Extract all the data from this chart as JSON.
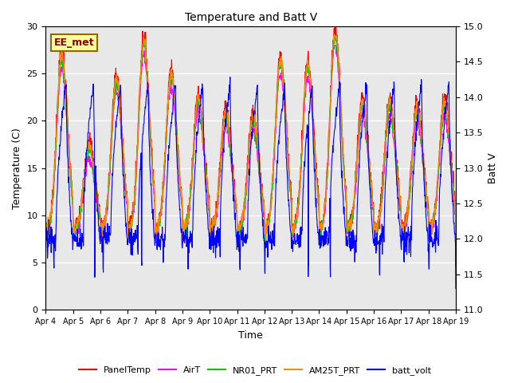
{
  "title": "Temperature and Batt V",
  "xlabel": "Time",
  "ylabel_left": "Temperature (C)",
  "ylabel_right": "Batt V",
  "ylim_left": [
    0,
    30
  ],
  "ylim_right": [
    11.0,
    15.0
  ],
  "yticks_left": [
    0,
    5,
    10,
    15,
    20,
    25,
    30
  ],
  "yticks_right": [
    11.0,
    11.5,
    12.0,
    12.5,
    13.0,
    13.5,
    14.0,
    14.5,
    15.0
  ],
  "xtick_labels": [
    "Apr 4",
    "Apr 5",
    "Apr 6",
    "Apr 7",
    "Apr 8",
    "Apr 9",
    "Apr 10",
    "Apr 11",
    "Apr 12",
    "Apr 13",
    "Apr 14",
    "Apr 15",
    "Apr 16",
    "Apr 17",
    "Apr 18",
    "Apr 19"
  ],
  "annotation": "EE_met",
  "annotation_color": "#8B0000",
  "annotation_box_color": "#FFFF99",
  "annotation_edge_color": "#8B6914",
  "colors": {
    "PanelTemp": "#FF0000",
    "AirT": "#FF00FF",
    "NR01_PRT": "#00CC00",
    "AM25T_PRT": "#FF8800",
    "batt_volt": "#0000FF"
  },
  "legend_labels": [
    "PanelTemp",
    "AirT",
    "NR01_PRT",
    "AM25T_PRT",
    "batt_volt"
  ],
  "background_color": "#E8E8E8",
  "grid_color": "#FFFFFF",
  "figsize": [
    6.4,
    4.8
  ],
  "dpi": 100
}
